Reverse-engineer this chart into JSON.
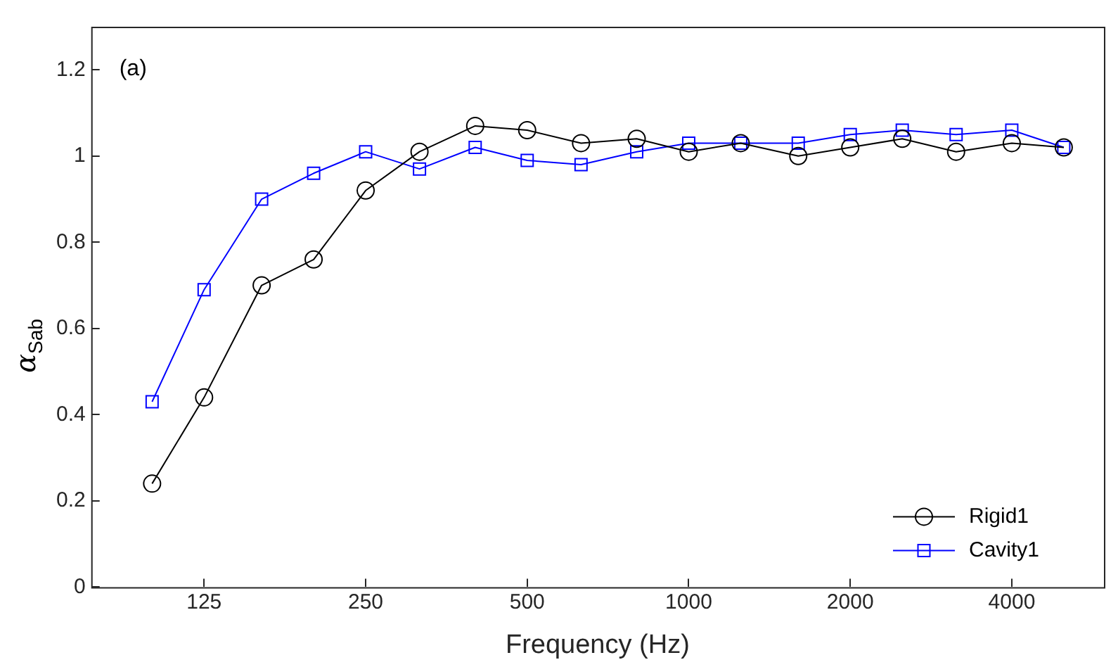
{
  "chart_data": {
    "type": "line",
    "xlabel": "Frequency (Hz)",
    "ylabel": "α$_{Sab}$",
    "annotations": [
      "(a)"
    ],
    "x": [
      100,
      125,
      160,
      200,
      250,
      315,
      400,
      500,
      630,
      800,
      1000,
      1250,
      1600,
      2000,
      2500,
      3150,
      4000,
      5000
    ],
    "series": [
      {
        "name": "Rigid1",
        "color": "#000000",
        "marker": "circle",
        "values": [
          0.24,
          0.44,
          0.7,
          0.76,
          0.92,
          1.01,
          1.07,
          1.06,
          1.03,
          1.04,
          1.01,
          1.03,
          1.0,
          1.02,
          1.04,
          1.01,
          1.03,
          1.02
        ]
      },
      {
        "name": "Cavity1",
        "color": "#0000ff",
        "marker": "square",
        "values": [
          0.43,
          0.69,
          0.9,
          0.96,
          1.01,
          0.97,
          1.02,
          0.99,
          0.98,
          1.01,
          1.03,
          1.03,
          1.03,
          1.05,
          1.06,
          1.05,
          1.06,
          1.02
        ]
      }
    ],
    "log": "x",
    "xlim": [
      77,
      5940
    ],
    "xticks": [
      125,
      250,
      500,
      1000,
      2000,
      4000
    ],
    "ylim": [
      0,
      1.3
    ],
    "yticks": [
      0,
      0.2,
      0.4,
      0.6,
      0.8,
      1,
      1.2
    ],
    "grid": false,
    "legend": "bottom right",
    "line_style": "solid"
  }
}
